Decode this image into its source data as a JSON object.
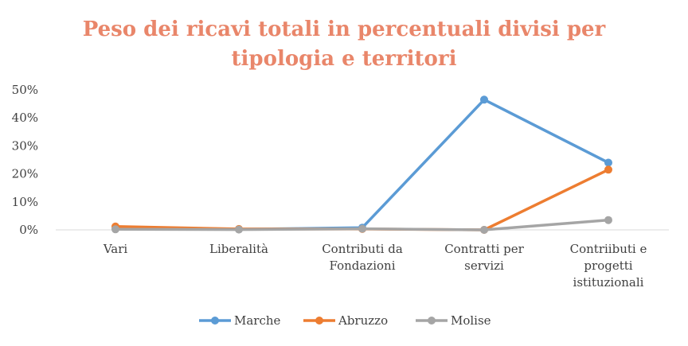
{
  "chart_data": {
    "type": "line",
    "title_lines": [
      "Peso dei ricavi totali in percentuali divisi per",
      "tipologia e territori"
    ],
    "categories": [
      [
        "Vari"
      ],
      [
        "Liberalità"
      ],
      [
        "Contributi da",
        "Fondazioni"
      ],
      [
        "Contratti per",
        "servizi"
      ],
      [
        "Contriibuti e",
        "progetti",
        "istituzionali"
      ]
    ],
    "y_ticks": [
      "0%",
      "10%",
      "20%",
      "30%",
      "40%",
      "50%"
    ],
    "ylim": [
      0,
      50
    ],
    "y_unit": "%",
    "grid": false,
    "legend_position": "bottom",
    "series": [
      {
        "name": "Marche",
        "color": "#5B9BD5",
        "values": [
          0.5,
          0.2,
          0.8,
          46.5,
          24
        ]
      },
      {
        "name": "Abruzzo",
        "color": "#ED7D31",
        "values": [
          1.2,
          0.3,
          0.3,
          0,
          21.5
        ]
      },
      {
        "name": "Molise",
        "color": "#A5A5A5",
        "values": [
          0.2,
          0.1,
          0.4,
          0,
          3.5
        ]
      }
    ]
  }
}
